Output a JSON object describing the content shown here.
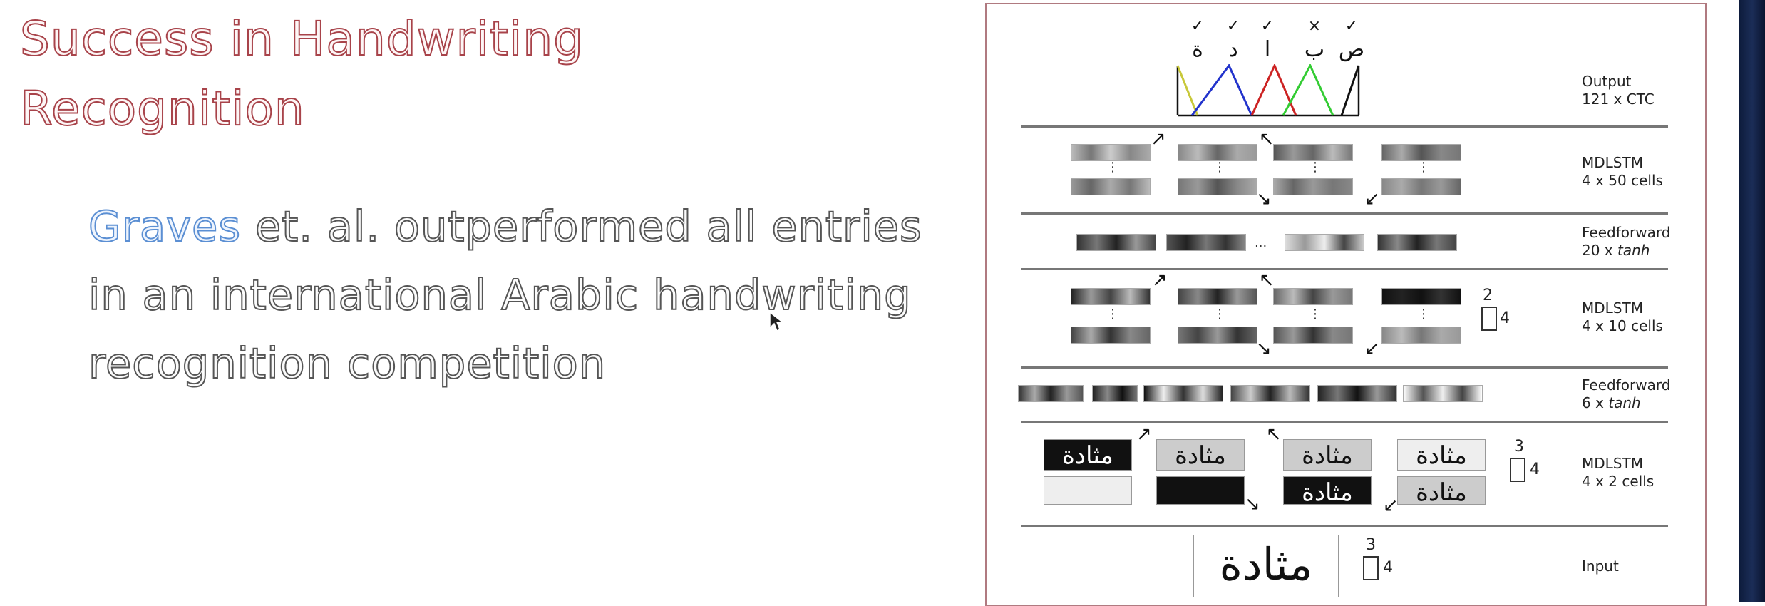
{
  "slide": {
    "title": "Success in Handwriting Recognition",
    "body_highlight": "Graves",
    "body_rest": " et. al. outperformed all entries in an international Arabic handwriting recognition competition"
  },
  "figure": {
    "check_marks": [
      "✓",
      "✓",
      "✓",
      "×",
      "✓"
    ],
    "output_glyphs": [
      "ة",
      "د",
      "ا",
      "ب",
      "ص"
    ],
    "word_sample": "مثادة",
    "ellipsis": "...",
    "layers": [
      {
        "name": "Output",
        "detail": "121 x CTC",
        "unit": ""
      },
      {
        "name": "MDLSTM",
        "detail": "4 x 50 cells",
        "unit": ""
      },
      {
        "name": "Feedforward",
        "detail": "20 x ",
        "unit": "tanh"
      },
      {
        "name": "MDLSTM",
        "detail": "4 x 10 cells",
        "unit": ""
      },
      {
        "name": "Feedforward",
        "detail": "6 x ",
        "unit": "tanh"
      },
      {
        "name": "MDLSTM",
        "detail": "4 x 2 cells",
        "unit": ""
      },
      {
        "name": "Input",
        "detail": "",
        "unit": ""
      }
    ],
    "dims": [
      {
        "top": "2",
        "side": "4"
      },
      {
        "top": "3",
        "side": "4"
      },
      {
        "top": "3",
        "side": "4"
      }
    ],
    "colors": {
      "yellow": "#c8c83a",
      "blue": "#2233cc",
      "red": "#cc2222",
      "green": "#33cc33",
      "black": "#111111"
    }
  }
}
